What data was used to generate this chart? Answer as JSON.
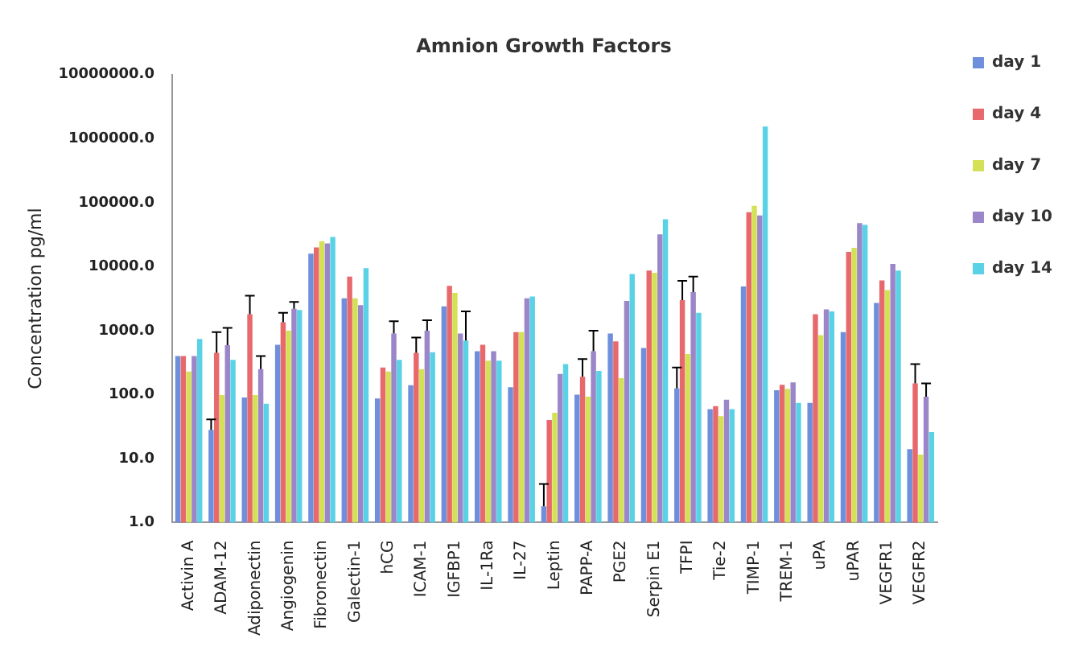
{
  "chart_data": {
    "type": "bar",
    "title": "Amnion Growth Factors",
    "ylabel": "Concentration pg/ml",
    "categories": [
      "Activin A",
      "ADAM-12",
      "Adiponectin",
      "Angiogenin",
      "Fibronectin",
      "Galectin-1",
      "hCG",
      "ICAM-1",
      "IGFBP1",
      "IL-1Ra",
      "IL-27",
      "Leptin",
      "PAPP-A",
      "PGE2",
      "Serpin E1",
      "TFPI",
      "Tie-2",
      "TIMP-1",
      "TREM-1",
      "uPA",
      "uPAR",
      "VEGFR1",
      "VEGFR2"
    ],
    "series": [
      {
        "name": "day 1",
        "color": "#6f8fdc",
        "values": [
          400,
          28,
          90,
          600,
          16000,
          3200,
          87,
          140,
          2400,
          475,
          130,
          1.8,
          100,
          900,
          535,
          125,
          59,
          4900,
          117,
          74,
          950,
          2700,
          14
        ],
        "errors": [
          null,
          [
            28,
            41
          ],
          null,
          null,
          null,
          null,
          null,
          null,
          null,
          null,
          null,
          [
            1.8,
            4
          ],
          null,
          null,
          null,
          [
            125,
            265
          ],
          null,
          null,
          null,
          null,
          null,
          null,
          null
        ]
      },
      {
        "name": "day 4",
        "color": "#e8696b",
        "values": [
          400,
          450,
          1800,
          1350,
          20000,
          7000,
          265,
          450,
          5000,
          600,
          950,
          40,
          190,
          680,
          8700,
          3000,
          66,
          71000,
          142,
          1800,
          17000,
          6100,
          150
        ],
        "errors": [
          null,
          [
            450,
            950
          ],
          [
            1800,
            3500
          ],
          [
            1350,
            1900
          ],
          null,
          null,
          null,
          [
            450,
            780
          ],
          null,
          null,
          null,
          null,
          [
            190,
            360
          ],
          null,
          null,
          [
            3000,
            6000
          ],
          null,
          null,
          null,
          null,
          null,
          null,
          [
            150,
            300
          ]
        ]
      },
      {
        "name": "day 7",
        "color": "#d4e157",
        "values": [
          230,
          98,
          98,
          1000,
          25000,
          3200,
          230,
          250,
          3900,
          340,
          950,
          52,
          93,
          180,
          8000,
          430,
          46,
          89000,
          123,
          850,
          19600,
          4300,
          11.5
        ]
      },
      {
        "name": "day 10",
        "color": "#9b86c9",
        "values": [
          400,
          590,
          250,
          2200,
          23000,
          2500,
          900,
          1000,
          900,
          475,
          3200,
          210,
          475,
          2900,
          32000,
          4000,
          83,
          63000,
          155,
          2150,
          48000,
          11000,
          93
        ],
        "errors": [
          null,
          [
            590,
            1100
          ],
          [
            250,
            400
          ],
          [
            2200,
            2800
          ],
          null,
          null,
          [
            900,
            1400
          ],
          [
            1000,
            1450
          ],
          null,
          null,
          null,
          null,
          [
            475,
            1000
          ],
          null,
          null,
          [
            4000,
            7000
          ],
          null,
          null,
          null,
          null,
          null,
          null,
          [
            93,
            150
          ]
        ]
      },
      {
        "name": "day 14",
        "color": "#5ad2e6",
        "values": [
          740,
          350,
          72,
          2100,
          29000,
          9500,
          350,
          460,
          700,
          340,
          3400,
          300,
          235,
          7700,
          55000,
          1900,
          59,
          1550000,
          74,
          2000,
          45000,
          8700,
          26
        ],
        "errors": [
          null,
          null,
          null,
          null,
          null,
          null,
          null,
          null,
          [
            700,
            2000
          ],
          null,
          null,
          null,
          null,
          null,
          null,
          null,
          null,
          null,
          null,
          null,
          null,
          null,
          null
        ]
      }
    ],
    "log": "y",
    "ylim": [
      1,
      10000000
    ],
    "yticks": [
      {
        "value": 1,
        "label": "1.0"
      },
      {
        "value": 10,
        "label": "10.0"
      },
      {
        "value": 100,
        "label": "100.0"
      },
      {
        "value": 1000,
        "label": "1000.0"
      },
      {
        "value": 10000,
        "label": "10000.0"
      },
      {
        "value": 100000,
        "label": "100000.0"
      },
      {
        "value": 1000000,
        "label": "1000000.0"
      },
      {
        "value": 10000000,
        "label": "10000000.0"
      }
    ],
    "grid": false,
    "legend": "top right"
  }
}
